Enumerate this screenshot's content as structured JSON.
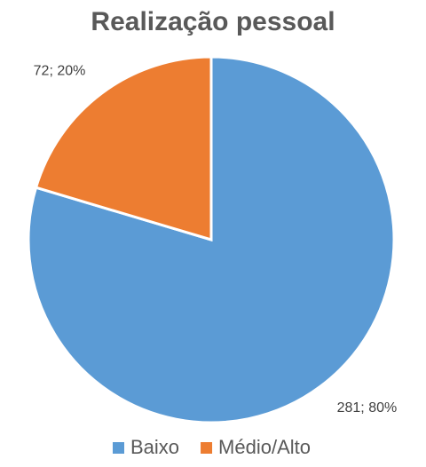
{
  "chart_data": {
    "type": "pie",
    "title": "Realização pessoal",
    "categories": [
      "Baixo",
      "Médio/Alto"
    ],
    "values": [
      281,
      72
    ],
    "value_labels": [
      "281; 80%",
      "72; 20%"
    ],
    "colors": [
      "#5b9bd5",
      "#ed7d31"
    ],
    "legend": "bottom"
  }
}
